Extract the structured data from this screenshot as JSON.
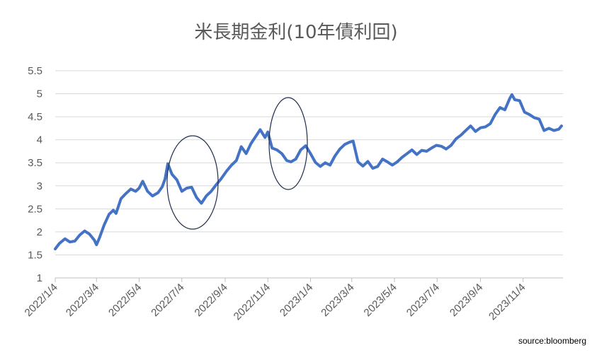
{
  "chart_data": {
    "type": "line",
    "title": "米長期金利(10年債利回)",
    "source": "source:bloomberg",
    "xlabel": "",
    "ylabel": "",
    "ylim": [
      1,
      5.5
    ],
    "y_ticks": [
      "1",
      "1.5",
      "2",
      "2.5",
      "3",
      "3.5",
      "4",
      "4.5",
      "5",
      "5.5"
    ],
    "x_ticks": [
      "2022/1/4",
      "2022/3/4",
      "2022/5/4",
      "2022/7/4",
      "2022/9/4",
      "2022/11/4",
      "2023/1/4",
      "2023/3/4",
      "2023/5/4",
      "2023/7/4",
      "2023/9/4",
      "2023/11/4"
    ],
    "x_range": [
      "2022/1/4",
      "2023/12/31"
    ],
    "grid": "horizontal",
    "line_color": "#4472C4",
    "series": [
      {
        "x": [
          "2022-01-04",
          "2022-01-10",
          "2022-01-18",
          "2022-01-25",
          "2022-02-01",
          "2022-02-08",
          "2022-02-15",
          "2022-02-22",
          "2022-03-01",
          "2022-03-04",
          "2022-03-08",
          "2022-03-15",
          "2022-03-22",
          "2022-03-28",
          "2022-04-01",
          "2022-04-08",
          "2022-04-15",
          "2022-04-22",
          "2022-04-29",
          "2022-05-04",
          "2022-05-09",
          "2022-05-16",
          "2022-05-23",
          "2022-05-31",
          "2022-06-06",
          "2022-06-10",
          "2022-06-14",
          "2022-06-20",
          "2022-06-27",
          "2022-07-04",
          "2022-07-11",
          "2022-07-18",
          "2022-07-25",
          "2022-08-01",
          "2022-08-08",
          "2022-08-15",
          "2022-08-22",
          "2022-08-29",
          "2022-09-06",
          "2022-09-13",
          "2022-09-20",
          "2022-09-27",
          "2022-10-04",
          "2022-10-11",
          "2022-10-18",
          "2022-10-24",
          "2022-10-31",
          "2022-11-04",
          "2022-11-10",
          "2022-11-17",
          "2022-11-24",
          "2022-12-01",
          "2022-12-07",
          "2022-12-14",
          "2022-12-21",
          "2022-12-28",
          "2023-01-04",
          "2023-01-11",
          "2023-01-18",
          "2023-01-25",
          "2023-02-01",
          "2023-02-08",
          "2023-02-15",
          "2023-02-22",
          "2023-03-01",
          "2023-03-06",
          "2023-03-13",
          "2023-03-20",
          "2023-03-27",
          "2023-04-03",
          "2023-04-10",
          "2023-04-17",
          "2023-04-24",
          "2023-05-01",
          "2023-05-08",
          "2023-05-15",
          "2023-05-22",
          "2023-05-29",
          "2023-06-05",
          "2023-06-12",
          "2023-06-19",
          "2023-06-26",
          "2023-07-03",
          "2023-07-10",
          "2023-07-17",
          "2023-07-24",
          "2023-07-31",
          "2023-08-07",
          "2023-08-14",
          "2023-08-21",
          "2023-08-28",
          "2023-09-04",
          "2023-09-11",
          "2023-09-18",
          "2023-09-25",
          "2023-10-02",
          "2023-10-09",
          "2023-10-16",
          "2023-10-19",
          "2023-10-23",
          "2023-10-30",
          "2023-11-06",
          "2023-11-13",
          "2023-11-20",
          "2023-11-27",
          "2023-12-04",
          "2023-12-11",
          "2023-12-18",
          "2023-12-25",
          "2023-12-29"
        ],
        "values": [
          1.63,
          1.75,
          1.85,
          1.78,
          1.8,
          1.93,
          2.02,
          1.95,
          1.82,
          1.72,
          1.86,
          2.15,
          2.38,
          2.47,
          2.4,
          2.72,
          2.83,
          2.93,
          2.88,
          2.95,
          3.1,
          2.88,
          2.78,
          2.85,
          2.98,
          3.15,
          3.48,
          3.25,
          3.13,
          2.88,
          2.95,
          2.97,
          2.75,
          2.62,
          2.78,
          2.88,
          3.02,
          3.15,
          3.32,
          3.45,
          3.55,
          3.85,
          3.7,
          3.92,
          4.08,
          4.22,
          4.05,
          4.17,
          3.82,
          3.78,
          3.7,
          3.55,
          3.52,
          3.58,
          3.78,
          3.87,
          3.7,
          3.51,
          3.42,
          3.5,
          3.45,
          3.65,
          3.8,
          3.9,
          3.95,
          3.97,
          3.52,
          3.43,
          3.53,
          3.38,
          3.42,
          3.58,
          3.52,
          3.45,
          3.52,
          3.62,
          3.7,
          3.78,
          3.68,
          3.77,
          3.75,
          3.82,
          3.88,
          3.86,
          3.8,
          3.88,
          4.02,
          4.1,
          4.2,
          4.3,
          4.18,
          4.26,
          4.28,
          4.35,
          4.55,
          4.7,
          4.65,
          4.9,
          4.98,
          4.87,
          4.85,
          4.6,
          4.55,
          4.48,
          4.45,
          4.2,
          4.25,
          4.2,
          4.23,
          4.3
        ]
      }
    ],
    "annotations": [
      "ellipse around 2022/7 peak",
      "ellipse around 2022/11 peak"
    ]
  }
}
